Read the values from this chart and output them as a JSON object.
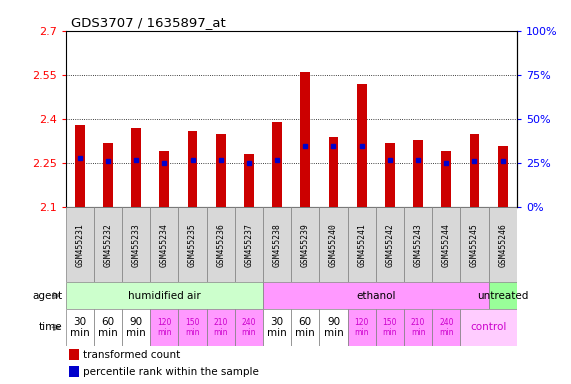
{
  "title": "GDS3707 / 1635897_at",
  "samples": [
    "GSM455231",
    "GSM455232",
    "GSM455233",
    "GSM455234",
    "GSM455235",
    "GSM455236",
    "GSM455237",
    "GSM455238",
    "GSM455239",
    "GSM455240",
    "GSM455241",
    "GSM455242",
    "GSM455243",
    "GSM455244",
    "GSM455245",
    "GSM455246"
  ],
  "transformed_count": [
    2.38,
    2.32,
    2.37,
    2.29,
    2.36,
    2.35,
    2.28,
    2.39,
    2.56,
    2.34,
    2.52,
    2.32,
    2.33,
    2.29,
    2.35,
    2.31
  ],
  "percentile_rank": [
    28,
    26,
    27,
    25,
    27,
    27,
    25,
    27,
    35,
    35,
    35,
    27,
    27,
    25,
    26,
    26
  ],
  "y_min": 2.1,
  "y_max": 2.7,
  "y_ticks_left": [
    2.1,
    2.25,
    2.4,
    2.55,
    2.7
  ],
  "y_ticks_right": [
    0,
    25,
    50,
    75,
    100
  ],
  "bar_color": "#cc0000",
  "blue_color": "#0000cc",
  "bar_width": 0.35,
  "agent_groups": [
    {
      "label": "humidified air",
      "start": 0,
      "end": 7,
      "color": "#ccffcc"
    },
    {
      "label": "ethanol",
      "start": 7,
      "end": 15,
      "color": "#ff99ff"
    },
    {
      "label": "untreated",
      "start": 15,
      "end": 16,
      "color": "#99ff99"
    }
  ],
  "time_data": [
    {
      "label": "30\nmin",
      "col": 0,
      "span": 1,
      "bg": "#ffffff"
    },
    {
      "label": "60\nmin",
      "col": 1,
      "span": 1,
      "bg": "#ffffff"
    },
    {
      "label": "90\nmin",
      "col": 2,
      "span": 1,
      "bg": "#ffffff"
    },
    {
      "label": "120\nmin",
      "col": 3,
      "span": 1,
      "bg": "#ff99ff"
    },
    {
      "label": "150\nmin",
      "col": 4,
      "span": 1,
      "bg": "#ff99ff"
    },
    {
      "label": "210\nmin",
      "col": 5,
      "span": 1,
      "bg": "#ff99ff"
    },
    {
      "label": "240\nmin",
      "col": 6,
      "span": 1,
      "bg": "#ff99ff"
    },
    {
      "label": "30\nmin",
      "col": 7,
      "span": 1,
      "bg": "#ffffff"
    },
    {
      "label": "60\nmin",
      "col": 8,
      "span": 1,
      "bg": "#ffffff"
    },
    {
      "label": "90\nmin",
      "col": 9,
      "span": 1,
      "bg": "#ffffff"
    },
    {
      "label": "120\nmin",
      "col": 10,
      "span": 1,
      "bg": "#ff99ff"
    },
    {
      "label": "150\nmin",
      "col": 11,
      "span": 1,
      "bg": "#ff99ff"
    },
    {
      "label": "210\nmin",
      "col": 12,
      "span": 1,
      "bg": "#ff99ff"
    },
    {
      "label": "240\nmin",
      "col": 13,
      "span": 1,
      "bg": "#ff99ff"
    },
    {
      "label": "control",
      "col": 14,
      "span": 2,
      "bg": "#ffccff"
    }
  ],
  "sample_cell_color": "#d8d8d8",
  "label_color_small": "#cc00cc"
}
